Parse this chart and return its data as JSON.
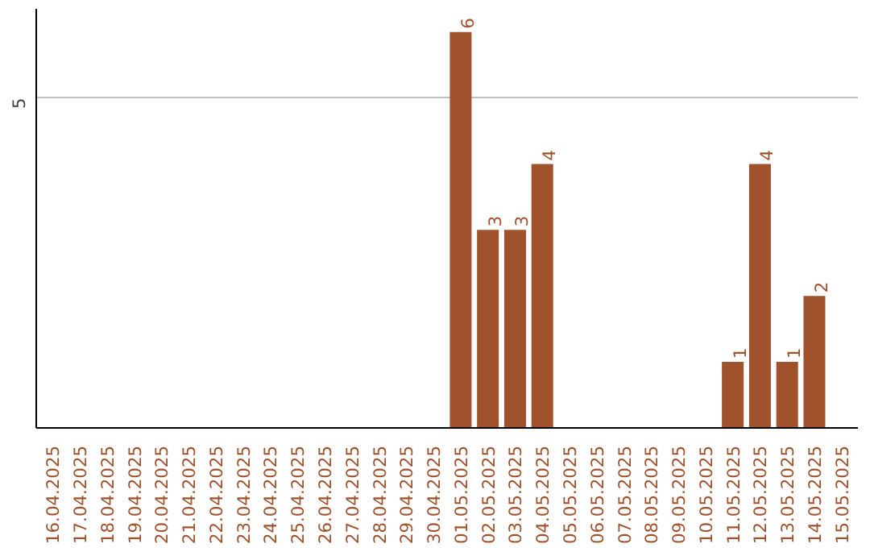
{
  "chart_data": {
    "type": "bar",
    "categories": [
      "16.04.2025",
      "17.04.2025",
      "18.04.2025",
      "19.04.2025",
      "20.04.2025",
      "21.04.2025",
      "22.04.2025",
      "23.04.2025",
      "24.04.2025",
      "25.04.2025",
      "26.04.2025",
      "27.04.2025",
      "28.04.2025",
      "29.04.2025",
      "30.04.2025",
      "01.05.2025",
      "02.05.2025",
      "03.05.2025",
      "04.05.2025",
      "05.05.2025",
      "06.05.2025",
      "07.05.2025",
      "08.05.2025",
      "09.05.2025",
      "10.05.2025",
      "11.05.2025",
      "12.05.2025",
      "13.05.2025",
      "14.05.2025",
      "15.05.2025"
    ],
    "values": [
      null,
      null,
      null,
      null,
      null,
      null,
      null,
      null,
      null,
      null,
      null,
      null,
      null,
      null,
      null,
      6,
      3,
      3,
      4,
      null,
      null,
      null,
      null,
      null,
      null,
      1,
      4,
      1,
      2,
      null
    ],
    "color": "#a0522d",
    "ylim": [
      0,
      6.35
    ],
    "yticks": [
      5
    ],
    "grid": "y",
    "data_labels": true
  }
}
